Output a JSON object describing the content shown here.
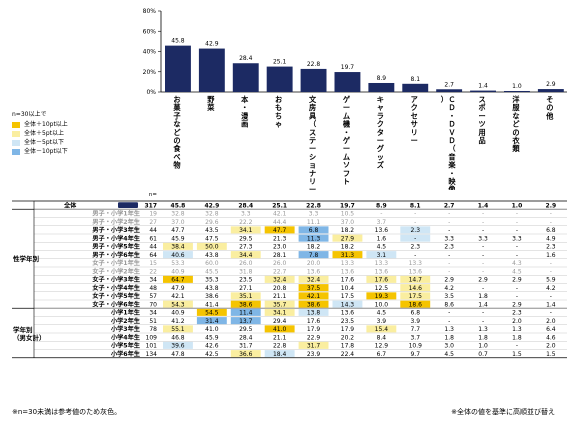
{
  "chart_data": {
    "type": "bar",
    "ylim": [
      0,
      80
    ],
    "yticks": [
      "80%",
      "60%",
      "40%",
      "20%",
      "0%"
    ],
    "categories": [
      "お菓子などの食べ物",
      "野菜",
      "本・漫画",
      "おもちゃ",
      "文房具（ステーショナリー）",
      "ゲーム機・ゲームソフト",
      "キャラクターグッズ",
      "アクセサリー",
      "ＣＤ・ＤＶＤ（音楽・映像ソフト）",
      "スポーツ用品",
      "洋服などの衣類",
      "その他"
    ],
    "values": [
      45.8,
      42.9,
      28.4,
      25.1,
      22.8,
      19.7,
      8.9,
      8.1,
      2.7,
      1.4,
      1.0,
      2.9
    ],
    "bar_color": "#1c2a63"
  },
  "legend": {
    "title": "n=30以上で",
    "items": [
      {
        "label": "全体＋10pt以上",
        "color": "#f5c400"
      },
      {
        "label": "全体＋5pt以上",
        "color": "#faeea0"
      },
      {
        "label": "全体－5pt以下",
        "color": "#cfe6f5"
      },
      {
        "label": "全体－10pt以下",
        "color": "#7fb6e6"
      }
    ]
  },
  "table": {
    "n_header": "n=",
    "total_row": {
      "label": "全体",
      "n": "317",
      "values": [
        "45.8",
        "42.9",
        "28.4",
        "25.1",
        "22.8",
        "19.7",
        "8.9",
        "8.1",
        "2.7",
        "1.4",
        "1.0",
        "2.9"
      ]
    },
    "groups": [
      {
        "label": "性学年別",
        "rows": [
          {
            "label": "男子・小学1年生",
            "n": "19",
            "values": [
              "32.8",
              "32.8",
              "3.3",
              "42.1",
              "3.3",
              "10.5",
              "-",
              "-",
              "-",
              "-",
              "-",
              "-"
            ],
            "marks": [
              "",
              "",
              "",
              "",
              "",
              "",
              "",
              "",
              "",
              "",
              "",
              ""
            ],
            "grey": true
          },
          {
            "label": "男子・小学2年生",
            "n": "27",
            "values": [
              "37.0",
              "29.6",
              "22.2",
              "44.4",
              "11.1",
              "37.0",
              "3.7",
              "-",
              "-",
              "-",
              "-",
              "-"
            ],
            "marks": [
              "",
              "",
              "",
              "",
              "",
              "",
              "",
              "",
              "",
              "",
              "",
              ""
            ],
            "grey": true
          },
          {
            "label": "男子・小学3年生",
            "n": "44",
            "values": [
              "47.7",
              "43.5",
              "34.1",
              "47.7",
              "6.8",
              "18.2",
              "13.6",
              "2.3",
              "-",
              "-",
              "-",
              "6.8"
            ],
            "marks": [
              "",
              "",
              "p5",
              "p10",
              "m10",
              "",
              "",
              "m5",
              "",
              "",
              "",
              ""
            ]
          },
          {
            "label": "男子・小学4年生",
            "n": "61",
            "values": [
              "45.9",
              "47.5",
              "29.5",
              "21.3",
              "11.3",
              "27.9",
              "1.6",
              "-",
              "3.3",
              "3.3",
              "3.3",
              "4.9"
            ],
            "marks": [
              "",
              "",
              "",
              "",
              "m10",
              "p5",
              "",
              "m5",
              "",
              "",
              "",
              ""
            ]
          },
          {
            "label": "男子・小学5年生",
            "n": "44",
            "values": [
              "38.4",
              "50.0",
              "27.3",
              "23.0",
              "18.2",
              "18.2",
              "4.5",
              "2.3",
              "2.3",
              "-",
              "-",
              "2.3"
            ],
            "marks": [
              "p5",
              "p5",
              "",
              "",
              "",
              "",
              "",
              "",
              "",
              "",
              "",
              ""
            ]
          },
          {
            "label": "男子・小学6年生",
            "n": "64",
            "values": [
              "40.6",
              "43.8",
              "34.4",
              "28.1",
              "7.8",
              "31.3",
              "3.1",
              "-",
              "-",
              "-",
              "-",
              "1.6"
            ],
            "marks": [
              "m5",
              "",
              "p5",
              "",
              "m10",
              "p10",
              "m5",
              "",
              "",
              "",
              "",
              ""
            ]
          },
          {
            "label": "女子・小学1年生",
            "n": "15",
            "values": [
              "53.3",
              "60.0",
              "26.0",
              "26.0",
              "20.0",
              "13.3",
              "13.3",
              "13.3",
              "-",
              "-",
              "4.3",
              "-"
            ],
            "marks": [
              "",
              "",
              "",
              "",
              "",
              "",
              "",
              "",
              "",
              "",
              "",
              ""
            ],
            "grey": true
          },
          {
            "label": "女子・小学2年生",
            "n": "22",
            "values": [
              "40.9",
              "45.5",
              "31.8",
              "22.7",
              "13.6",
              "13.6",
              "13.6",
              "13.6",
              "-",
              "-",
              "4.5",
              "-"
            ],
            "marks": [
              "",
              "",
              "",
              "",
              "",
              "",
              "",
              "",
              "",
              "",
              "",
              ""
            ],
            "grey": true
          },
          {
            "label": "女子・小学3年生",
            "n": "34",
            "values": [
              "64.7",
              "35.3",
              "23.5",
              "32.4",
              "32.4",
              "17.6",
              "17.6",
              "14.7",
              "2.9",
              "2.9",
              "2.9",
              "5.9"
            ],
            "marks": [
              "p10",
              "",
              "",
              "p5",
              "p5",
              "",
              "p5",
              "p5",
              "",
              "",
              "",
              ""
            ]
          },
          {
            "label": "女子・小学4年生",
            "n": "48",
            "values": [
              "47.9",
              "43.8",
              "27.1",
              "20.8",
              "37.5",
              "10.4",
              "12.5",
              "14.6",
              "4.2",
              "-",
              "-",
              "4.2"
            ],
            "marks": [
              "",
              "",
              "",
              "",
              "p10",
              "",
              "",
              "p5",
              "",
              "",
              "",
              ""
            ]
          },
          {
            "label": "女子・小学5年生",
            "n": "57",
            "values": [
              "42.1",
              "38.6",
              "35.1",
              "21.1",
              "42.1",
              "17.5",
              "19.3",
              "17.5",
              "3.5",
              "1.8",
              "-",
              "-"
            ],
            "marks": [
              "",
              "",
              "p5",
              "",
              "p10",
              "",
              "p10",
              "p5",
              "",
              "",
              "",
              ""
            ]
          },
          {
            "label": "女子・小学6年生",
            "n": "70",
            "values": [
              "54.3",
              "41.4",
              "38.6",
              "35.7",
              "38.6",
              "14.3",
              "10.0",
              "18.6",
              "8.6",
              "1.4",
              "2.9",
              "1.4"
            ],
            "marks": [
              "p5",
              "",
              "p10",
              "p5",
              "p10",
              "m5",
              "",
              "p10",
              "",
              "",
              "",
              ""
            ]
          }
        ]
      },
      {
        "label": "学年別（男女計）",
        "rows": [
          {
            "label": "小学1年生",
            "n": "34",
            "values": [
              "40.9",
              "54.5",
              "11.4",
              "34.1",
              "13.8",
              "13.6",
              "4.5",
              "6.8",
              "-",
              "-",
              "2.3",
              "-"
            ],
            "marks": [
              "",
              "p10",
              "m10",
              "p5",
              "m5",
              "",
              "",
              "",
              "",
              "",
              "",
              ""
            ]
          },
          {
            "label": "小学2年生",
            "n": "51",
            "values": [
              "41.2",
              "31.4",
              "13.7",
              "29.4",
              "17.6",
              "23.5",
              "3.9",
              "3.9",
              "-",
              "-",
              "2.0",
              "2.0"
            ],
            "marks": [
              "",
              "m10",
              "m10",
              "",
              "",
              "",
              "",
              "",
              "",
              "",
              "",
              ""
            ]
          },
          {
            "label": "小学3年生",
            "n": "78",
            "values": [
              "55.1",
              "41.0",
              "29.5",
              "41.0",
              "17.9",
              "17.9",
              "15.4",
              "7.7",
              "1.3",
              "1.3",
              "1.3",
              "6.4"
            ],
            "marks": [
              "p5",
              "",
              "",
              "p10",
              "",
              "",
              "p5",
              "",
              "",
              "",
              "",
              ""
            ]
          },
          {
            "label": "小学4年生",
            "n": "109",
            "values": [
              "46.8",
              "45.9",
              "28.4",
              "21.1",
              "22.9",
              "20.2",
              "8.4",
              "3.7",
              "1.8",
              "1.8",
              "1.8",
              "4.6"
            ],
            "marks": [
              "",
              "",
              "",
              "",
              "",
              "",
              "",
              "",
              "",
              "",
              "",
              ""
            ]
          },
          {
            "label": "小学5年生",
            "n": "101",
            "values": [
              "39.6",
              "42.6",
              "31.7",
              "22.8",
              "31.7",
              "17.8",
              "12.9",
              "10.9",
              "3.0",
              "1.0",
              "-",
              "2.0"
            ],
            "marks": [
              "m5",
              "",
              "",
              "",
              "p5",
              "",
              "",
              "",
              "",
              "",
              "",
              ""
            ]
          },
          {
            "label": "小学6年生",
            "n": "134",
            "values": [
              "47.8",
              "42.5",
              "36.6",
              "18.4",
              "23.9",
              "22.4",
              "6.7",
              "9.7",
              "4.5",
              "0.7",
              "1.5",
              "1.5"
            ],
            "marks": [
              "",
              "",
              "p5",
              "m5",
              "",
              "",
              "",
              "",
              "",
              "",
              "",
              ""
            ]
          }
        ]
      }
    ]
  },
  "footnotes": {
    "left": "※n=30未満は参考値のため灰色。",
    "right": "※全体の値を基準に高順並び替え"
  }
}
